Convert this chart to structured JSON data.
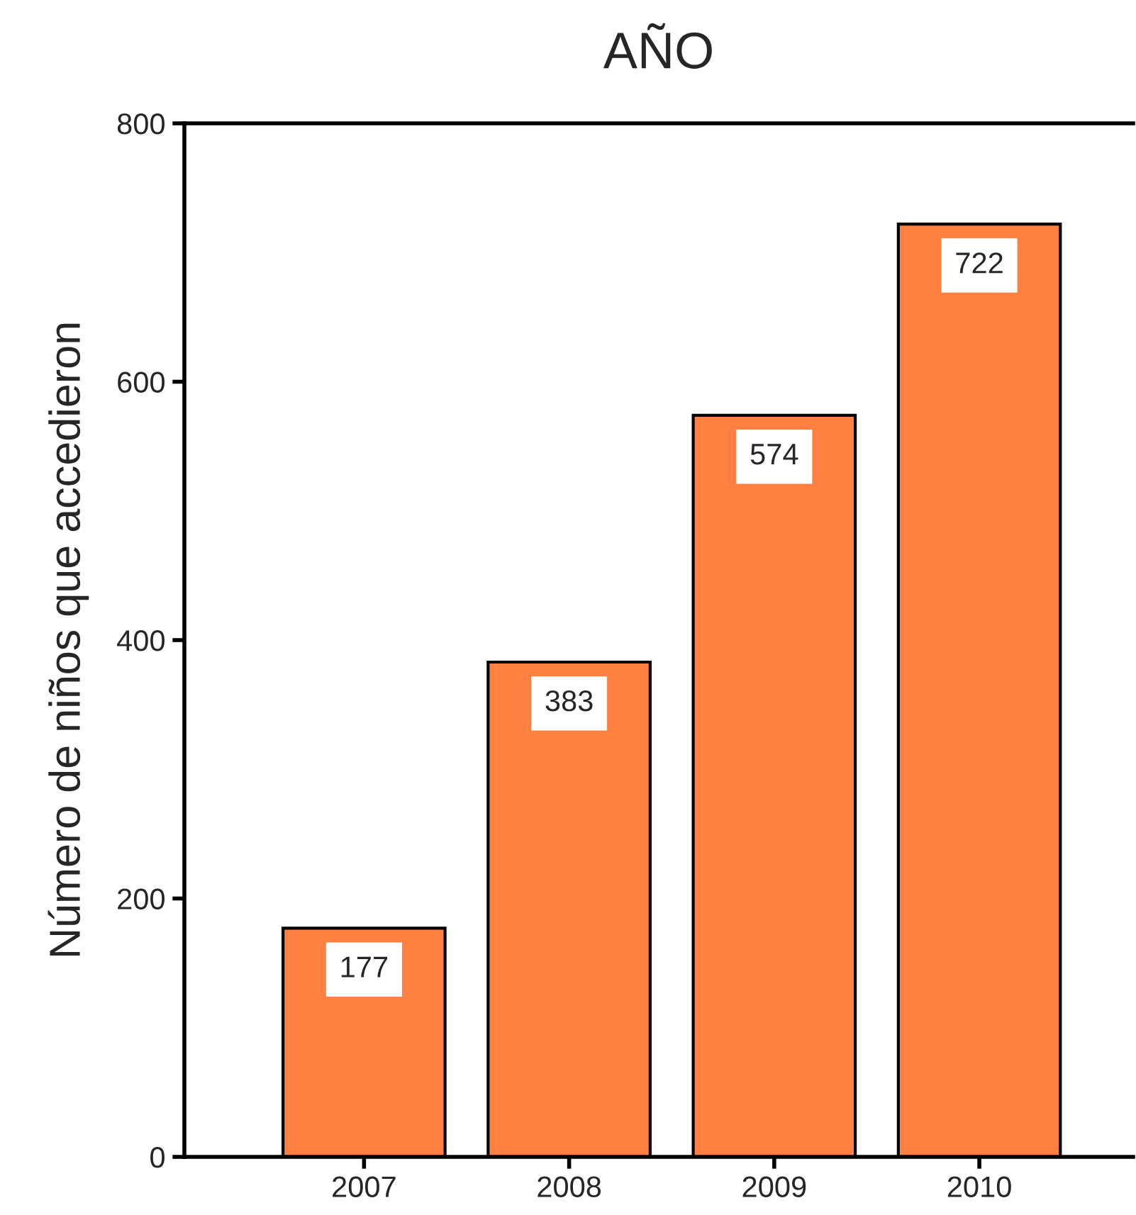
{
  "chart_data": {
    "type": "bar",
    "title": "AÑO",
    "ylabel": "Número de niños que accedieron",
    "categories": [
      "2007",
      "2008",
      "2009",
      "2010"
    ],
    "values": [
      177,
      383,
      574,
      722
    ],
    "data_labels": true,
    "color": "#ff8040",
    "ylim": [
      0,
      800
    ],
    "yticks": [
      0,
      200,
      400,
      600,
      800
    ],
    "grid": false,
    "legend": false
  }
}
